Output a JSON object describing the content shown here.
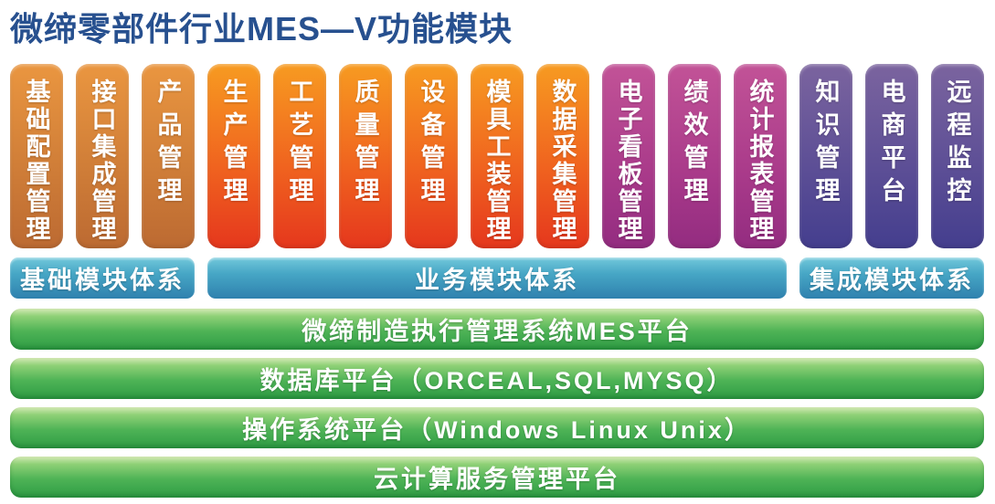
{
  "page": {
    "title": "微缔零部件行业MES—V功能模块"
  },
  "groups": [
    {
      "name": "base",
      "modules": [
        "基础配置管理",
        "接口集成管理",
        "产品管理"
      ]
    },
    {
      "name": "business-core",
      "modules": [
        "生产管理",
        "工艺管理",
        "质量管理",
        "设备管理",
        "模具工装管理",
        "数据采集管理"
      ]
    },
    {
      "name": "business-analytics",
      "modules": [
        "电子看板管理",
        "绩效管理",
        "统计报表管理"
      ]
    },
    {
      "name": "integration",
      "modules": [
        "知识管理",
        "电商平台",
        "远程监控"
      ]
    }
  ],
  "tiers": [
    {
      "label": "基础模块体系"
    },
    {
      "label": "业务模块体系"
    },
    {
      "label": "集成模块体系"
    }
  ],
  "platforms": [
    {
      "label": "微缔制造执行管理系统MES平台"
    },
    {
      "label": "数据库平台（ORCEAL,SQL,MYSQ）"
    },
    {
      "label": "操作系统平台（Windows Linux Unix）"
    },
    {
      "label": "云计算服务管理平台"
    }
  ],
  "colors": {
    "title": "#27508f",
    "orange_top": "#ea9640",
    "orange_bottom": "#bc6a32",
    "red_top": "#f79b21",
    "red_bottom": "#e5371d",
    "magenta_top": "#c25397",
    "magenta_bottom": "#932c80",
    "purple_top": "#7b649f",
    "purple_bottom": "#443e8e",
    "cyan_top": "#72c8db",
    "cyan_bottom": "#2f81ae",
    "green_top": "#90d177",
    "green_bottom": "#2e9c44",
    "text_on_bars": "#ffffff"
  }
}
